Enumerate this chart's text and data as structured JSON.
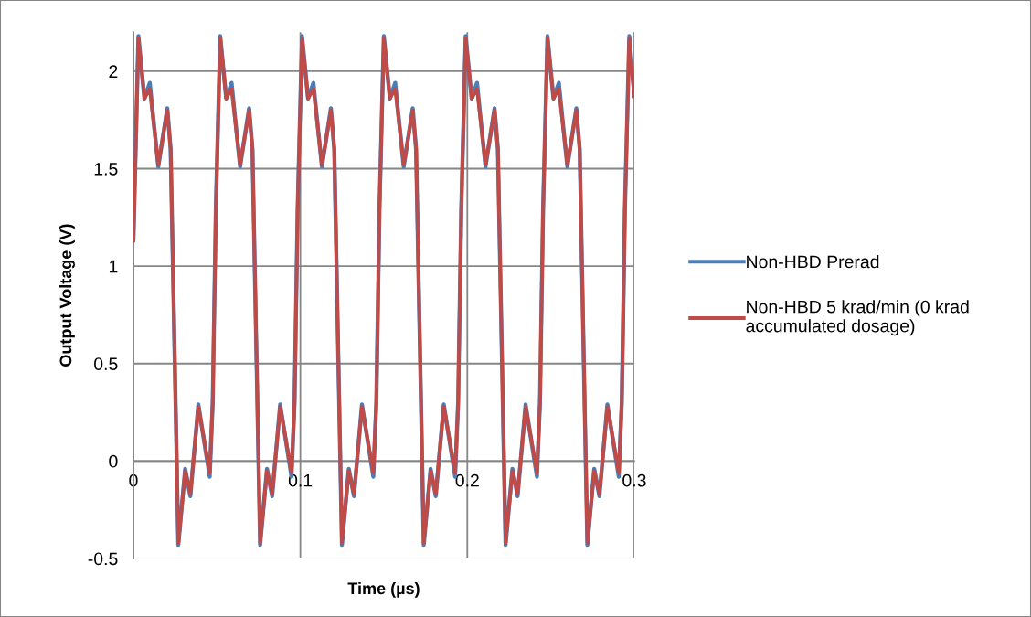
{
  "chart_data": {
    "type": "line",
    "xlabel": "Time (µs)",
    "ylabel": "Output Voltage (V)",
    "x": [
      0,
      0.003,
      0.0066,
      0.0098,
      0.0149,
      0.0203,
      0.0223,
      0.0269,
      0.031,
      0.0341,
      0.0389,
      0.0457,
      0.0475,
      0.0494,
      0.052,
      0.0556,
      0.0588,
      0.0639,
      0.0693,
      0.0713,
      0.0759,
      0.08,
      0.0831,
      0.0879,
      0.0947,
      0.0965,
      0.0984,
      0.101,
      0.1046,
      0.1078,
      0.1129,
      0.1183,
      0.1203,
      0.1249,
      0.129,
      0.1321,
      0.1369,
      0.1437,
      0.1455,
      0.1474,
      0.15,
      0.1536,
      0.1568,
      0.1619,
      0.1673,
      0.1693,
      0.1739,
      0.178,
      0.1811,
      0.1859,
      0.1927,
      0.1945,
      0.1964,
      0.199,
      0.2026,
      0.2058,
      0.2109,
      0.2163,
      0.2183,
      0.2229,
      0.227,
      0.2301,
      0.2349,
      0.2417,
      0.2435,
      0.2454,
      0.248,
      0.2516,
      0.2548,
      0.2599,
      0.2653,
      0.2673,
      0.2719,
      0.276,
      0.2791,
      0.2839,
      0.2907,
      0.2925,
      0.2944,
      0.297,
      0.3
    ],
    "series": [
      {
        "name": "Non-HBD Prerad",
        "color": "#4a7ebb",
        "values": [
          1.13,
          2.18,
          1.86,
          1.94,
          1.51,
          1.81,
          1.6,
          -0.43,
          -0.04,
          -0.18,
          0.29,
          -0.08,
          0.3,
          1.3,
          2.18,
          1.86,
          1.94,
          1.51,
          1.81,
          1.6,
          -0.43,
          -0.04,
          -0.18,
          0.29,
          -0.08,
          0.3,
          1.3,
          2.18,
          1.86,
          1.94,
          1.51,
          1.81,
          1.6,
          -0.43,
          -0.04,
          -0.18,
          0.29,
          -0.08,
          0.3,
          1.3,
          2.18,
          1.86,
          1.94,
          1.51,
          1.81,
          1.6,
          -0.43,
          -0.04,
          -0.18,
          0.29,
          -0.08,
          0.3,
          1.3,
          2.18,
          1.86,
          1.94,
          1.51,
          1.81,
          1.6,
          -0.43,
          -0.04,
          -0.18,
          0.29,
          -0.08,
          0.3,
          1.3,
          2.18,
          1.86,
          1.94,
          1.51,
          1.81,
          1.6,
          -0.43,
          -0.04,
          -0.18,
          0.29,
          -0.08,
          0.3,
          1.3,
          2.18,
          1.87
        ]
      },
      {
        "name": "Non-HBD 5 krad/min (0 krad\naccumulated dosage)",
        "color": "#be4b48",
        "values": [
          1.13,
          2.17,
          1.86,
          1.91,
          1.52,
          1.8,
          1.6,
          -0.42,
          -0.05,
          -0.17,
          0.28,
          -0.06,
          0.3,
          1.3,
          2.17,
          1.86,
          1.91,
          1.52,
          1.8,
          1.6,
          -0.42,
          -0.05,
          -0.17,
          0.28,
          -0.06,
          0.3,
          1.3,
          2.17,
          1.86,
          1.91,
          1.52,
          1.8,
          1.6,
          -0.42,
          -0.05,
          -0.17,
          0.28,
          -0.06,
          0.3,
          1.3,
          2.17,
          1.86,
          1.91,
          1.52,
          1.8,
          1.6,
          -0.42,
          -0.05,
          -0.17,
          0.28,
          -0.06,
          0.3,
          1.3,
          2.17,
          1.86,
          1.91,
          1.52,
          1.8,
          1.6,
          -0.42,
          -0.05,
          -0.17,
          0.28,
          -0.06,
          0.3,
          1.3,
          2.17,
          1.86,
          1.91,
          1.52,
          1.8,
          1.6,
          -0.42,
          -0.05,
          -0.17,
          0.28,
          -0.06,
          0.3,
          1.3,
          2.17,
          1.87
        ]
      }
    ],
    "xlim": [
      0,
      0.3
    ],
    "xticks": [
      0,
      0.1,
      0.2,
      0.3
    ],
    "ylim": [
      -0.5,
      2.2
    ],
    "yticks": [
      -0.5,
      0,
      0.5,
      1,
      1.5,
      2
    ],
    "grid": true,
    "legend": "right",
    "marker": "none",
    "line_style": "solid"
  }
}
